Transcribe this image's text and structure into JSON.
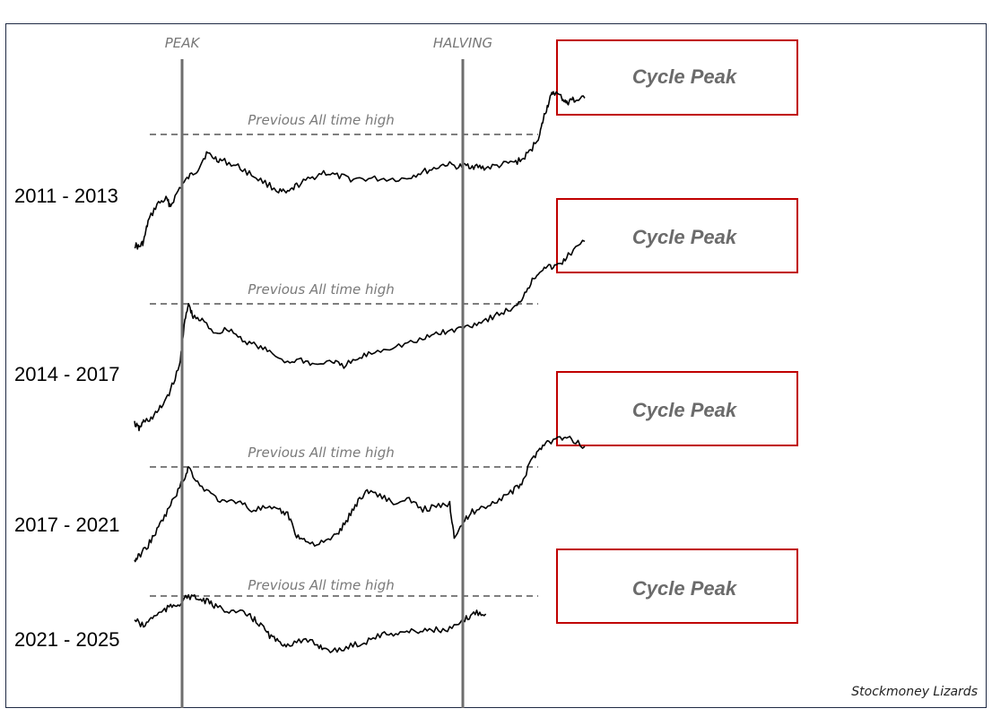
{
  "chart_data": {
    "type": "line",
    "title": "",
    "credit": "Stockmoney Lizards",
    "markers": [
      {
        "name": "peak",
        "label": "PEAK"
      },
      {
        "name": "halving",
        "label": "HALVING"
      }
    ],
    "ath_label": "Previous All time high",
    "cycle_peak_label": "Cycle Peak",
    "colors": {
      "line": "#000000",
      "marker": "#6e6e6e",
      "box": "#c00000",
      "frame": "#1f2a44"
    },
    "series": [
      {
        "name": "2011 - 2013",
        "points": [
          [
            0,
            0.18
          ],
          [
            0.01,
            0.16
          ],
          [
            0.02,
            0.2
          ],
          [
            0.03,
            0.35
          ],
          [
            0.05,
            0.48
          ],
          [
            0.07,
            0.52
          ],
          [
            0.08,
            0.47
          ],
          [
            0.1,
            0.6
          ],
          [
            0.12,
            0.68
          ],
          [
            0.14,
            0.74
          ],
          [
            0.16,
            0.86
          ],
          [
            0.18,
            0.82
          ],
          [
            0.2,
            0.8
          ],
          [
            0.23,
            0.76
          ],
          [
            0.26,
            0.7
          ],
          [
            0.29,
            0.64
          ],
          [
            0.32,
            0.58
          ],
          [
            0.34,
            0.56
          ],
          [
            0.36,
            0.62
          ],
          [
            0.39,
            0.67
          ],
          [
            0.42,
            0.72
          ],
          [
            0.45,
            0.69
          ],
          [
            0.48,
            0.67
          ],
          [
            0.52,
            0.67
          ],
          [
            0.56,
            0.67
          ],
          [
            0.6,
            0.67
          ],
          [
            0.63,
            0.71
          ],
          [
            0.66,
            0.74
          ],
          [
            0.69,
            0.78
          ],
          [
            0.72,
            0.76
          ],
          [
            0.74,
            0.77
          ],
          [
            0.76,
            0.76
          ],
          [
            0.78,
            0.75
          ],
          [
            0.81,
            0.77
          ],
          [
            0.84,
            0.79
          ],
          [
            0.86,
            0.81
          ],
          [
            0.88,
            0.88
          ],
          [
            0.9,
            1.0
          ],
          [
            0.91,
            1.14
          ],
          [
            0.92,
            1.24
          ],
          [
            0.93,
            1.32
          ],
          [
            0.95,
            1.27
          ],
          [
            0.96,
            1.23
          ],
          [
            0.97,
            1.26
          ],
          [
            0.98,
            1.25
          ],
          [
            1.0,
            1.27
          ]
        ]
      },
      {
        "name": "2014 - 2017",
        "points": [
          [
            0,
            0.14
          ],
          [
            0.01,
            0.1
          ],
          [
            0.02,
            0.15
          ],
          [
            0.04,
            0.18
          ],
          [
            0.06,
            0.26
          ],
          [
            0.08,
            0.38
          ],
          [
            0.1,
            0.55
          ],
          [
            0.11,
            0.84
          ],
          [
            0.12,
            1.0
          ],
          [
            0.13,
            0.9
          ],
          [
            0.15,
            0.88
          ],
          [
            0.18,
            0.79
          ],
          [
            0.21,
            0.82
          ],
          [
            0.24,
            0.74
          ],
          [
            0.27,
            0.7
          ],
          [
            0.3,
            0.65
          ],
          [
            0.34,
            0.58
          ],
          [
            0.37,
            0.6
          ],
          [
            0.4,
            0.56
          ],
          [
            0.44,
            0.59
          ],
          [
            0.46,
            0.55
          ],
          [
            0.49,
            0.59
          ],
          [
            0.52,
            0.64
          ],
          [
            0.56,
            0.68
          ],
          [
            0.6,
            0.71
          ],
          [
            0.64,
            0.74
          ],
          [
            0.67,
            0.79
          ],
          [
            0.7,
            0.8
          ],
          [
            0.73,
            0.83
          ],
          [
            0.76,
            0.86
          ],
          [
            0.79,
            0.9
          ],
          [
            0.82,
            0.94
          ],
          [
            0.85,
            0.98
          ],
          [
            0.87,
            1.1
          ],
          [
            0.89,
            1.2
          ],
          [
            0.91,
            1.27
          ],
          [
            0.93,
            1.26
          ],
          [
            0.95,
            1.3
          ],
          [
            0.97,
            1.37
          ],
          [
            1.0,
            1.45
          ]
        ]
      },
      {
        "name": "2017 - 2021",
        "points": [
          [
            0,
            0.04
          ],
          [
            0.01,
            0.09
          ],
          [
            0.03,
            0.2
          ],
          [
            0.05,
            0.35
          ],
          [
            0.07,
            0.52
          ],
          [
            0.09,
            0.7
          ],
          [
            0.11,
            0.88
          ],
          [
            0.12,
            1.0
          ],
          [
            0.14,
            0.84
          ],
          [
            0.17,
            0.72
          ],
          [
            0.2,
            0.63
          ],
          [
            0.23,
            0.66
          ],
          [
            0.26,
            0.56
          ],
          [
            0.29,
            0.58
          ],
          [
            0.32,
            0.55
          ],
          [
            0.34,
            0.52
          ],
          [
            0.36,
            0.3
          ],
          [
            0.38,
            0.24
          ],
          [
            0.41,
            0.21
          ],
          [
            0.44,
            0.27
          ],
          [
            0.46,
            0.37
          ],
          [
            0.48,
            0.52
          ],
          [
            0.5,
            0.68
          ],
          [
            0.52,
            0.76
          ],
          [
            0.55,
            0.7
          ],
          [
            0.58,
            0.62
          ],
          [
            0.61,
            0.66
          ],
          [
            0.64,
            0.57
          ],
          [
            0.67,
            0.59
          ],
          [
            0.7,
            0.62
          ],
          [
            0.71,
            0.3
          ],
          [
            0.73,
            0.43
          ],
          [
            0.75,
            0.54
          ],
          [
            0.78,
            0.6
          ],
          [
            0.81,
            0.67
          ],
          [
            0.84,
            0.75
          ],
          [
            0.86,
            0.83
          ],
          [
            0.88,
            1.05
          ],
          [
            0.9,
            1.2
          ],
          [
            0.92,
            1.26
          ],
          [
            0.95,
            1.3
          ],
          [
            0.97,
            1.28
          ],
          [
            1.0,
            1.21
          ]
        ]
      },
      {
        "name": "2021 - 2025",
        "points": [
          [
            0,
            0.35
          ],
          [
            0.02,
            0.15
          ],
          [
            0.04,
            0.42
          ],
          [
            0.06,
            0.55
          ],
          [
            0.08,
            0.7
          ],
          [
            0.1,
            0.8
          ],
          [
            0.12,
            1.0
          ],
          [
            0.14,
            0.92
          ],
          [
            0.16,
            0.85
          ],
          [
            0.18,
            0.7
          ],
          [
            0.21,
            0.6
          ],
          [
            0.24,
            0.52
          ],
          [
            0.26,
            0.4
          ],
          [
            0.28,
            0.2
          ],
          [
            0.3,
            -0.1
          ],
          [
            0.32,
            -0.3
          ],
          [
            0.34,
            -0.35
          ],
          [
            0.37,
            -0.25
          ],
          [
            0.4,
            -0.32
          ],
          [
            0.42,
            -0.45
          ],
          [
            0.45,
            -0.55
          ],
          [
            0.48,
            -0.38
          ],
          [
            0.51,
            -0.3
          ],
          [
            0.54,
            -0.1
          ],
          [
            0.57,
            -0.05
          ],
          [
            0.6,
            0.0
          ],
          [
            0.63,
            0.02
          ],
          [
            0.66,
            0.08
          ],
          [
            0.69,
            0.02
          ],
          [
            0.72,
            0.18
          ],
          [
            0.74,
            0.4
          ],
          [
            0.76,
            0.55
          ],
          [
            0.78,
            0.5
          ]
        ]
      }
    ]
  }
}
